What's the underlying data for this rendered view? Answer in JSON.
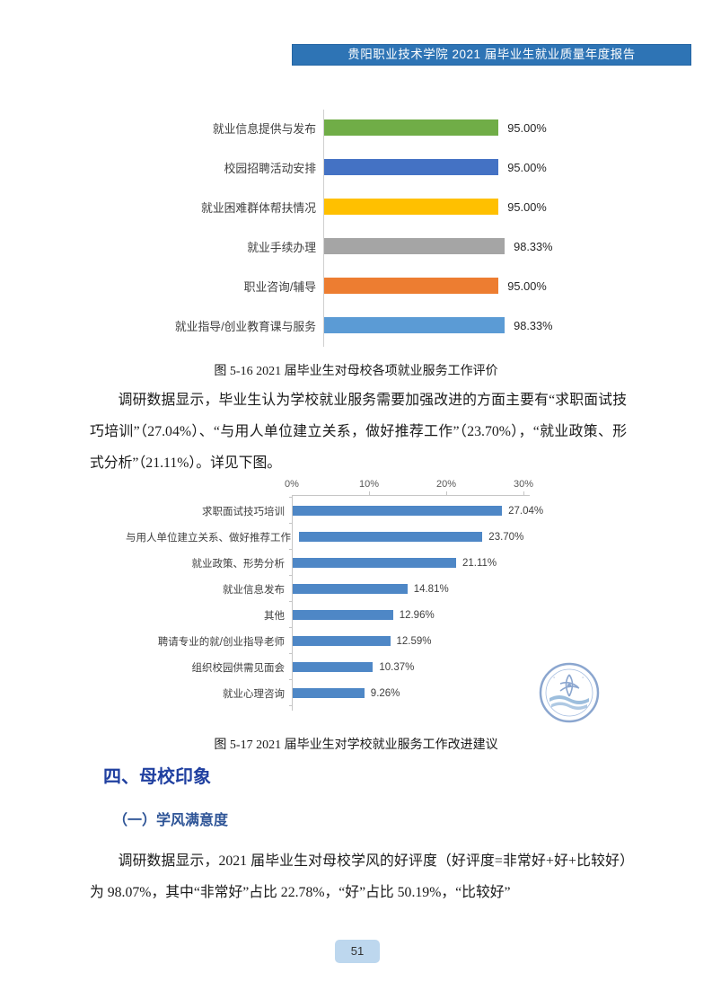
{
  "header": {
    "title": "贵阳职业技术学院 2021 届毕业生就业质量年度报告",
    "bg_color": "#2E74B5",
    "text_color": "#FFFFFF"
  },
  "captions": {
    "fig16": "图 5-16 2021 届毕业生对母校各项就业服务工作评价",
    "fig17": "图 5-17 2021 届毕业生对学校就业服务工作改进建议"
  },
  "paragraphs": {
    "p1": "调研数据显示，毕业生认为学校就业服务需要加强改进的方面主要有“求职面试技巧培训”（27.04%）、“与用人单位建立关系，做好推荐工作”（23.70%），“就业政策、形式分析”（21.11%）。详见下图。",
    "p2": "调研数据显示，2021 届毕业生对母校学风的好评度（好评度=非常好+好+比较好）为 98.07%，其中“非常好”占比 22.78%，“好”占比 50.19%，“比较好”"
  },
  "sections": {
    "h1": "四、母校印象",
    "h1_color": "#2040A0",
    "h2": "（一）学风满意度",
    "h2_color": "#2F5597"
  },
  "chart_data": [
    {
      "type": "bar",
      "orientation": "horizontal",
      "title": "图 5-16 2021 届毕业生对母校各项就业服务工作评价",
      "categories": [
        "就业信息提供与发布",
        "校园招聘活动安排",
        "就业困难群体帮扶情况",
        "就业手续办理",
        "职业咨询/辅导",
        "就业指导/创业教育课与服务"
      ],
      "values": [
        95.0,
        95.0,
        95.0,
        98.33,
        95.0,
        98.33
      ],
      "value_labels": [
        "95.00%",
        "95.00%",
        "95.00%",
        "98.33%",
        "95.00%",
        "98.33%"
      ],
      "colors": [
        "#70AD47",
        "#4472C4",
        "#FFC000",
        "#A5A5A5",
        "#ED7D31",
        "#5B9BD5"
      ],
      "xlim": [
        0,
        100
      ],
      "grid": false,
      "legend": "none",
      "data_labels": "outside-end"
    },
    {
      "type": "bar",
      "orientation": "horizontal",
      "title": "图 5-17 2021 届毕业生对学校就业服务工作改进建议",
      "categories": [
        "求职面试技巧培训",
        "与用人单位建立关系、做好推荐工作",
        "就业政策、形势分析",
        "就业信息发布",
        "其他",
        "聘请专业的就/创业指导老师",
        "组织校园供需见面会",
        "就业心理咨询"
      ],
      "values": [
        27.04,
        23.7,
        21.11,
        14.81,
        12.96,
        12.59,
        10.37,
        9.26
      ],
      "value_labels": [
        "27.04%",
        "23.70%",
        "21.11%",
        "14.81%",
        "12.96%",
        "12.59%",
        "10.37%",
        "9.26%"
      ],
      "bar_color": "#4E87C6",
      "x_ticks": [
        "0%",
        "10%",
        "20%",
        "30%"
      ],
      "xlim": [
        0,
        30
      ],
      "axis_position": "top",
      "grid": false,
      "legend": "none",
      "data_labels": "outside-end"
    }
  ],
  "watermark": {
    "name": "school-seal-logo",
    "ring_color": "#2E5FA8",
    "wave_color": "#2E74B5"
  },
  "footer": {
    "page_number": "51",
    "bg_color": "#BDD7EE"
  }
}
